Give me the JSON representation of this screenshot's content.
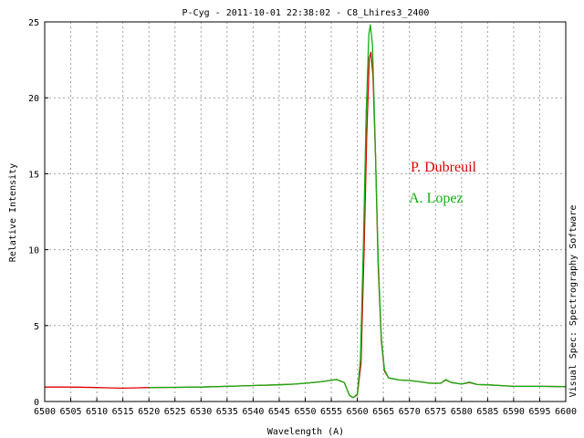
{
  "chart_data": {
    "type": "line",
    "title": "P-Cyg - 2011-10-01 22:38:02 - C8_Lhires3_2400",
    "xlabel": "Wavelength (A)",
    "ylabel": "Relative Intensity",
    "side_label": "Visual Spec: Spectrography Software",
    "xlim": [
      6500,
      6600
    ],
    "ylim": [
      0,
      25
    ],
    "x_ticks": [
      6500,
      6505,
      6510,
      6515,
      6520,
      6525,
      6530,
      6535,
      6540,
      6545,
      6550,
      6555,
      6560,
      6565,
      6570,
      6575,
      6580,
      6585,
      6590,
      6595,
      6600
    ],
    "y_ticks": [
      0,
      5,
      10,
      15,
      20,
      25
    ],
    "grid": true,
    "legend": "annotations",
    "series": [
      {
        "name": "P. Dubreuil",
        "color": "#e00000",
        "points": [
          [
            6500,
            0.95
          ],
          [
            6505,
            0.95
          ],
          [
            6510,
            0.92
          ],
          [
            6512,
            0.9
          ],
          [
            6515,
            0.88
          ],
          [
            6518,
            0.9
          ],
          [
            6520,
            0.92
          ],
          [
            6525,
            0.93
          ],
          [
            6530,
            0.95
          ],
          [
            6535,
            1.0
          ],
          [
            6540,
            1.05
          ],
          [
            6545,
            1.1
          ],
          [
            6548,
            1.15
          ],
          [
            6550,
            1.2
          ],
          [
            6553,
            1.3
          ],
          [
            6556,
            1.45
          ],
          [
            6557.5,
            1.25
          ],
          [
            6558.5,
            0.4
          ],
          [
            6559.2,
            0.25
          ],
          [
            6560,
            0.45
          ],
          [
            6560.7,
            2.5
          ],
          [
            6561.3,
            10.0
          ],
          [
            6561.8,
            17.5
          ],
          [
            6562.3,
            22.6
          ],
          [
            6562.6,
            23.0
          ],
          [
            6563.0,
            21.5
          ],
          [
            6563.5,
            16.0
          ],
          [
            6564.0,
            9.0
          ],
          [
            6564.6,
            4.0
          ],
          [
            6565.2,
            2.0
          ],
          [
            6566,
            1.55
          ],
          [
            6568,
            1.42
          ],
          [
            6570,
            1.38
          ],
          [
            6572,
            1.3
          ],
          [
            6574,
            1.2
          ],
          [
            6576,
            1.2
          ],
          [
            6577,
            1.42
          ],
          [
            6578,
            1.25
          ],
          [
            6580,
            1.15
          ],
          [
            6581.5,
            1.25
          ],
          [
            6583,
            1.12
          ],
          [
            6585,
            1.1
          ],
          [
            6590,
            1.0
          ],
          [
            6595,
            1.0
          ],
          [
            6600,
            0.98
          ]
        ]
      },
      {
        "name": "A. Lopez",
        "color": "#10b010",
        "points": [
          [
            6520,
            0.92
          ],
          [
            6525,
            0.93
          ],
          [
            6530,
            0.95
          ],
          [
            6535,
            1.0
          ],
          [
            6540,
            1.05
          ],
          [
            6545,
            1.1
          ],
          [
            6548,
            1.15
          ],
          [
            6550,
            1.2
          ],
          [
            6553,
            1.3
          ],
          [
            6556,
            1.45
          ],
          [
            6557.5,
            1.25
          ],
          [
            6558.5,
            0.4
          ],
          [
            6559.2,
            0.25
          ],
          [
            6560,
            0.5
          ],
          [
            6560.6,
            2.8
          ],
          [
            6561.2,
            11.0
          ],
          [
            6561.7,
            19.0
          ],
          [
            6562.2,
            24.2
          ],
          [
            6562.5,
            24.8
          ],
          [
            6562.9,
            23.5
          ],
          [
            6563.4,
            17.5
          ],
          [
            6564.0,
            9.5
          ],
          [
            6564.6,
            4.2
          ],
          [
            6565.2,
            2.1
          ],
          [
            6566,
            1.55
          ],
          [
            6568,
            1.42
          ],
          [
            6570,
            1.38
          ],
          [
            6572,
            1.3
          ],
          [
            6574,
            1.2
          ],
          [
            6576,
            1.2
          ],
          [
            6577,
            1.45
          ],
          [
            6578,
            1.25
          ],
          [
            6580,
            1.15
          ],
          [
            6581.5,
            1.28
          ],
          [
            6583,
            1.12
          ],
          [
            6585,
            1.1
          ],
          [
            6590,
            1.0
          ],
          [
            6595,
            1.0
          ],
          [
            6600,
            0.98
          ]
        ]
      }
    ],
    "annotations": [
      {
        "text": "P. Dubreuil",
        "color": "#e00000"
      },
      {
        "text": "A. Lopez",
        "color": "#10b010"
      }
    ]
  }
}
